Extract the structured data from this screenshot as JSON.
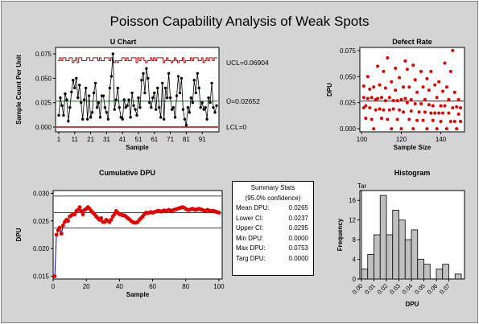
{
  "title": "Poisson Capability Analysis of Weak Spots",
  "colors": {
    "background": "#d4d4d4",
    "points": "#e60000",
    "line": "#0000cc",
    "control": "#c00000",
    "center": "#008000",
    "bars": "#c0c0c0"
  },
  "summary": {
    "title": "Summary Stats",
    "subtitle": "(95.0% confidence)",
    "rows": [
      {
        "label": "Mean DPU:",
        "value": "0.0265"
      },
      {
        "label": "Lower CI:",
        "value": "0.0237"
      },
      {
        "label": "Upper CI:",
        "value": "0.0295"
      },
      {
        "label": "Min DPU:",
        "value": "0.0000"
      },
      {
        "label": "Max DPU:",
        "value": "0.0753"
      },
      {
        "label": "Targ DPU:",
        "value": "0.0000"
      }
    ]
  },
  "chart_data": [
    {
      "type": "line",
      "title": "U Chart",
      "xlabel": "Sample",
      "ylabel": "Sample Count Per Unit",
      "xlim": [
        1,
        100
      ],
      "ylim": [
        0,
        0.075
      ],
      "xticks": [
        "1",
        "11",
        "21",
        "31",
        "41",
        "51",
        "61",
        "71",
        "81",
        "91"
      ],
      "yticks": [
        "0.000",
        "0.025",
        "0.050",
        "0.075"
      ],
      "limit_labels": {
        "ucl": "UCL=0.06904",
        "center": "Ū=0.02652",
        "lcl": "LCL=0"
      },
      "ucl": 0.06904,
      "center": 0.02652,
      "lcl": 0,
      "values": [
        0.012,
        0.03,
        0.022,
        0.012,
        0.034,
        0.028,
        0.006,
        0.02,
        0.036,
        0.048,
        0.04,
        0.05,
        0.03,
        0.043,
        0.025,
        0.008,
        0.028,
        0.04,
        0.008,
        0.032,
        0.01,
        0.015,
        0.035,
        0.045,
        0.02,
        0.025,
        0.01,
        0.032,
        0.032,
        0.02,
        0.015,
        0.008,
        0.04,
        0.052,
        0.075,
        0.018,
        0.028,
        0.04,
        0.02,
        0.01,
        0.008,
        0.028,
        0.02,
        0.022,
        0.028,
        0.01,
        0.035,
        0.022,
        0.018,
        0.012,
        0.03,
        0.02,
        0.048,
        0.055,
        0.035,
        0.06,
        0.05,
        0.025,
        0.02,
        0.03,
        0.035,
        0.018,
        0.04,
        0.02,
        0.01,
        0.045,
        0.008,
        0.04,
        0.03,
        0.055,
        0.03,
        0.018,
        0.02,
        0.01,
        0.032,
        0.052,
        0.035,
        0.05,
        0.018,
        0.008,
        0.002,
        0.02,
        0.015,
        0.03,
        0.025,
        0.048,
        0.035,
        0.055,
        0.04,
        0.02,
        0.025,
        0.018,
        0.02,
        0.008,
        0.03,
        0.025,
        0.045,
        0.02,
        0.015,
        0.022
      ],
      "ucl_values": [
        0.068,
        0.071,
        0.068,
        0.071,
        0.071,
        0.068,
        0.068,
        0.071,
        0.071,
        0.066,
        0.068,
        0.071,
        0.066,
        0.071,
        0.071,
        0.068,
        0.068,
        0.068,
        0.071,
        0.071,
        0.068,
        0.068,
        0.071,
        0.071,
        0.071,
        0.068,
        0.071,
        0.068,
        0.068,
        0.071,
        0.071,
        0.071,
        0.068,
        0.071,
        0.068,
        0.066,
        0.068,
        0.066,
        0.068,
        0.068,
        0.071,
        0.071,
        0.068,
        0.071,
        0.068,
        0.068,
        0.071,
        0.071,
        0.071,
        0.066,
        0.071,
        0.068,
        0.071,
        0.071,
        0.068,
        0.066,
        0.068,
        0.068,
        0.071,
        0.068,
        0.071,
        0.068,
        0.071,
        0.071,
        0.071,
        0.071,
        0.066,
        0.068,
        0.071,
        0.068,
        0.068,
        0.066,
        0.068,
        0.071,
        0.068,
        0.066,
        0.068,
        0.068,
        0.071,
        0.066,
        0.068,
        0.068,
        0.068,
        0.071,
        0.068,
        0.071,
        0.071,
        0.071,
        0.068,
        0.068,
        0.071,
        0.066,
        0.068,
        0.071,
        0.068,
        0.071,
        0.071,
        0.068,
        0.071,
        0.071
      ]
    },
    {
      "type": "scatter",
      "title": "Defect Rate",
      "xlabel": "Sample Size",
      "ylabel": "DPU",
      "xlim": [
        99,
        152
      ],
      "ylim": [
        -0.003,
        0.078
      ],
      "xticks": [
        "100",
        "120",
        "140"
      ],
      "yticks": [
        "0.000",
        "0.025",
        "0.050",
        "0.075"
      ],
      "mean_line": 0.02652,
      "points": [
        [
          101,
          0.041
        ],
        [
          101,
          0.03
        ],
        [
          101,
          0.02
        ],
        [
          102,
          0.022
        ],
        [
          102,
          0.01
        ],
        [
          103,
          0.029
        ],
        [
          103,
          0.05
        ],
        [
          104,
          0.038
        ],
        [
          104,
          0.02
        ],
        [
          105,
          0.03
        ],
        [
          105,
          0.009
        ],
        [
          106,
          0.04
        ],
        [
          106,
          0.0
        ],
        [
          107,
          0.028
        ],
        [
          107,
          0.018
        ],
        [
          108,
          0.06
        ],
        [
          108,
          0.029
        ],
        [
          109,
          0.042
        ],
        [
          109,
          0.019
        ],
        [
          110,
          0.01
        ],
        [
          110,
          0.03
        ],
        [
          111,
          0.055
        ],
        [
          111,
          0.018
        ],
        [
          112,
          0.039
        ],
        [
          112,
          0.027
        ],
        [
          113,
          0.068
        ],
        [
          113,
          0.009
        ],
        [
          114,
          0.03
        ],
        [
          114,
          0.018
        ],
        [
          115,
          0.045
        ],
        [
          115,
          0.0
        ],
        [
          116,
          0.027
        ],
        [
          116,
          0.019
        ],
        [
          117,
          0.058
        ],
        [
          117,
          0.037
        ],
        [
          118,
          0.009
        ],
        [
          118,
          0.027
        ],
        [
          119,
          0.049
        ],
        [
          119,
          0.018
        ],
        [
          120,
          0.028
        ],
        [
          120,
          0.0
        ],
        [
          121,
          0.04
        ],
        [
          121,
          0.016
        ],
        [
          122,
          0.065
        ],
        [
          122,
          0.029
        ],
        [
          123,
          0.057
        ],
        [
          123,
          0.025
        ],
        [
          124,
          0.009
        ],
        [
          124,
          0.04
        ],
        [
          125,
          0.017
        ],
        [
          125,
          0.028
        ],
        [
          126,
          0.061
        ],
        [
          126,
          0.0
        ],
        [
          127,
          0.047
        ],
        [
          127,
          0.024
        ],
        [
          128,
          0.008
        ],
        [
          128,
          0.035
        ],
        [
          129,
          0.016
        ],
        [
          130,
          0.055
        ],
        [
          130,
          0.024
        ],
        [
          131,
          0.04
        ],
        [
          131,
          0.008
        ],
        [
          132,
          0.028
        ],
        [
          132,
          0.016
        ],
        [
          133,
          0.048
        ],
        [
          133,
          0.0
        ],
        [
          134,
          0.023
        ],
        [
          134,
          0.037
        ],
        [
          135,
          0.015
        ],
        [
          135,
          0.055
        ],
        [
          136,
          0.022
        ],
        [
          136,
          0.008
        ],
        [
          137,
          0.042
        ],
        [
          137,
          0.015
        ],
        [
          138,
          0.03
        ],
        [
          138,
          0.0
        ],
        [
          139,
          0.045
        ],
        [
          139,
          0.015
        ],
        [
          140,
          0.022
        ],
        [
          140,
          0.007
        ],
        [
          141,
          0.036
        ],
        [
          141,
          0.015
        ],
        [
          142,
          0.063
        ],
        [
          142,
          0.022
        ],
        [
          143,
          0.0
        ],
        [
          143,
          0.04
        ],
        [
          144,
          0.015
        ],
        [
          144,
          0.028
        ],
        [
          145,
          0.055
        ],
        [
          145,
          0.007
        ],
        [
          146,
          0.075
        ],
        [
          146,
          0.02
        ],
        [
          147,
          0.035
        ],
        [
          147,
          0.007
        ],
        [
          148,
          0.021
        ],
        [
          148,
          0.0
        ],
        [
          149,
          0.028
        ],
        [
          149,
          0.014
        ],
        [
          150,
          0.02
        ],
        [
          150,
          0.007
        ]
      ]
    },
    {
      "type": "line",
      "title": "Cumulative DPU",
      "xlabel": "Sample",
      "ylabel": "DPU",
      "xlim": [
        0,
        102
      ],
      "ylim": [
        0.0145,
        0.0305
      ],
      "xticks": [
        "0",
        "20",
        "40",
        "60",
        "80",
        "100"
      ],
      "yticks": [
        "0.015",
        "0.020",
        "0.025",
        "0.030"
      ],
      "ref_lines": [
        0.0295,
        0.0265,
        0.0237
      ],
      "values": [
        0.015,
        0.0225,
        0.0233,
        0.0238,
        0.0227,
        0.0242,
        0.0248,
        0.0252,
        0.025,
        0.0258,
        0.026,
        0.0262,
        0.0262,
        0.0268,
        0.027,
        0.0275,
        0.0268,
        0.0262,
        0.027,
        0.0272,
        0.0275,
        0.0272,
        0.0268,
        0.0265,
        0.0262,
        0.0258,
        0.0255,
        0.0252,
        0.0255,
        0.0248,
        0.0248,
        0.0252,
        0.025,
        0.0248,
        0.0252,
        0.0258,
        0.0262,
        0.0268,
        0.0265,
        0.0262,
        0.0262,
        0.026,
        0.026,
        0.0258,
        0.0255,
        0.0253,
        0.025,
        0.0248,
        0.0247,
        0.0247,
        0.0248,
        0.0252,
        0.0255,
        0.0258,
        0.0262,
        0.0265,
        0.0264,
        0.0265,
        0.0266,
        0.0265,
        0.0266,
        0.0267,
        0.0268,
        0.0268,
        0.0267,
        0.0268,
        0.0269,
        0.0268,
        0.0269,
        0.027,
        0.0268,
        0.0269,
        0.027,
        0.0271,
        0.0272,
        0.0273,
        0.0274,
        0.0275,
        0.0274,
        0.0272,
        0.027,
        0.027,
        0.0271,
        0.0272,
        0.0271,
        0.027,
        0.0271,
        0.0272,
        0.0271,
        0.027,
        0.0269,
        0.0268,
        0.027,
        0.0269,
        0.0268,
        0.0268,
        0.0268,
        0.0267,
        0.0266,
        0.0265
      ]
    },
    {
      "type": "bar",
      "title": "Histogram",
      "xlabel": "DPU",
      "ylabel": "Frequency",
      "target_label": "Tar",
      "xlim": [
        0,
        0.08
      ],
      "ylim": [
        0,
        18
      ],
      "xticks": [
        "0.00",
        "0.01",
        "0.02",
        "0.03",
        "0.04",
        "0.05",
        "0.06",
        "0.07"
      ],
      "yticks": [
        "0",
        "4",
        "8",
        "12",
        "16"
      ],
      "bin_width": 0.005,
      "bin_starts": [
        0.0,
        0.005,
        0.01,
        0.015,
        0.02,
        0.025,
        0.03,
        0.035,
        0.04,
        0.045,
        0.05,
        0.055,
        0.06,
        0.065,
        0.07,
        0.075
      ],
      "values": [
        2,
        5,
        9,
        17,
        9,
        14,
        12,
        8,
        10,
        4,
        3,
        0,
        2,
        3,
        0,
        1
      ]
    }
  ]
}
